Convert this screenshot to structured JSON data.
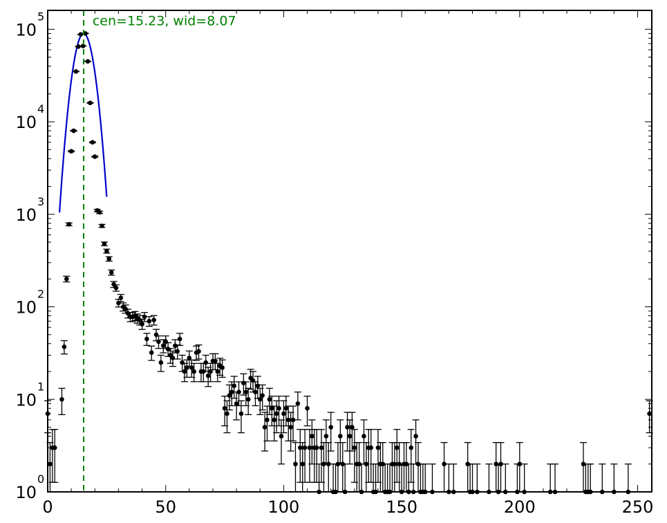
{
  "chart_data": {
    "type": "scatter",
    "title": "",
    "xlabel": "",
    "ylabel": "",
    "xlim": [
      0,
      256
    ],
    "ylim": [
      1,
      160000
    ],
    "yscale": "log",
    "grid": false,
    "x_ticks": [
      {
        "value": 0,
        "label": "0"
      },
      {
        "value": 50,
        "label": "50"
      },
      {
        "value": 100,
        "label": "100"
      },
      {
        "value": 150,
        "label": "150"
      },
      {
        "value": 200,
        "label": "200"
      },
      {
        "value": 250,
        "label": "250"
      }
    ],
    "y_ticks": [
      {
        "value": 1,
        "base": "10",
        "exp": "0"
      },
      {
        "value": 10,
        "base": "10",
        "exp": "1"
      },
      {
        "value": 100,
        "base": "10",
        "exp": "2"
      },
      {
        "value": 1000,
        "base": "10",
        "exp": "3"
      },
      {
        "value": 10000,
        "base": "10",
        "exp": "4"
      },
      {
        "value": 100000,
        "base": "10",
        "exp": "5"
      }
    ],
    "annotation": {
      "text": "cen=15.23, wid=8.07",
      "color": "#008000",
      "x": 19,
      "y": 100000
    },
    "center_line": {
      "x": 15.23,
      "color": "#008000",
      "style": "dashed"
    },
    "fit": {
      "color": "#0000cc",
      "center": 15.23,
      "width": 8.07,
      "amplitude": 90000,
      "x_range": [
        5,
        25
      ]
    },
    "series": [
      {
        "color": "#000000",
        "points": [
          [
            0,
            7
          ],
          [
            1,
            2
          ],
          [
            2,
            3
          ],
          [
            3,
            3
          ],
          [
            6,
            10
          ],
          [
            7,
            37
          ],
          [
            8,
            200
          ],
          [
            9,
            780
          ],
          [
            10,
            4800
          ],
          [
            11,
            8000
          ],
          [
            12,
            35000
          ],
          [
            13,
            65000
          ],
          [
            14,
            88000
          ],
          [
            15,
            66000
          ],
          [
            16,
            90000
          ],
          [
            17,
            45000
          ],
          [
            18,
            16000
          ],
          [
            19,
            6000
          ],
          [
            20,
            4200
          ],
          [
            21,
            1100
          ],
          [
            22,
            1050
          ],
          [
            23,
            750
          ],
          [
            24,
            480
          ],
          [
            25,
            400
          ],
          [
            26,
            330
          ],
          [
            27,
            235
          ],
          [
            28,
            175
          ],
          [
            29,
            160
          ],
          [
            30,
            110
          ],
          [
            31,
            125
          ],
          [
            32,
            100
          ],
          [
            33,
            95
          ],
          [
            34,
            85
          ],
          [
            35,
            78
          ],
          [
            36,
            78
          ],
          [
            37,
            80
          ],
          [
            38,
            75
          ],
          [
            39,
            72
          ],
          [
            40,
            65
          ],
          [
            41,
            78
          ],
          [
            42,
            45
          ],
          [
            43,
            70
          ],
          [
            44,
            32
          ],
          [
            45,
            72
          ],
          [
            46,
            50
          ],
          [
            47,
            42
          ],
          [
            48,
            25
          ],
          [
            49,
            38
          ],
          [
            50,
            42
          ],
          [
            51,
            35
          ],
          [
            52,
            30
          ],
          [
            53,
            28
          ],
          [
            54,
            38
          ],
          [
            55,
            33
          ],
          [
            56,
            45
          ],
          [
            57,
            25
          ],
          [
            58,
            20
          ],
          [
            59,
            22
          ],
          [
            60,
            28
          ],
          [
            61,
            22
          ],
          [
            62,
            20
          ],
          [
            63,
            32
          ],
          [
            64,
            33
          ],
          [
            65,
            20
          ],
          [
            66,
            20
          ],
          [
            67,
            25
          ],
          [
            68,
            18
          ],
          [
            69,
            20
          ],
          [
            70,
            26
          ],
          [
            71,
            26
          ],
          [
            72,
            20
          ],
          [
            73,
            23
          ],
          [
            74,
            22
          ],
          [
            75,
            8
          ],
          [
            76,
            7
          ],
          [
            77,
            11
          ],
          [
            78,
            12
          ],
          [
            79,
            14
          ],
          [
            80,
            9
          ],
          [
            81,
            12
          ],
          [
            82,
            7
          ],
          [
            83,
            15
          ],
          [
            84,
            12
          ],
          [
            85,
            10
          ],
          [
            86,
            17
          ],
          [
            87,
            16
          ],
          [
            88,
            12
          ],
          [
            89,
            14
          ],
          [
            90,
            10
          ],
          [
            91,
            11
          ],
          [
            92,
            5
          ],
          [
            93,
            6
          ],
          [
            94,
            10
          ],
          [
            95,
            8
          ],
          [
            96,
            6
          ],
          [
            97,
            7
          ],
          [
            98,
            8
          ],
          [
            99,
            4
          ],
          [
            100,
            7
          ],
          [
            101,
            8
          ],
          [
            102,
            6
          ],
          [
            103,
            5
          ],
          [
            104,
            6
          ],
          [
            105,
            2
          ],
          [
            106,
            9
          ],
          [
            107,
            3
          ],
          [
            108,
            2
          ],
          [
            109,
            3
          ],
          [
            110,
            8
          ],
          [
            111,
            3
          ],
          [
            112,
            4
          ],
          [
            113,
            3
          ],
          [
            114,
            3
          ],
          [
            115,
            1
          ],
          [
            116,
            3
          ],
          [
            117,
            2
          ],
          [
            118,
            4
          ],
          [
            119,
            2
          ],
          [
            120,
            5
          ],
          [
            121,
            1
          ],
          [
            122,
            1
          ],
          [
            123,
            2
          ],
          [
            124,
            4
          ],
          [
            125,
            2
          ],
          [
            126,
            1
          ],
          [
            127,
            5
          ],
          [
            128,
            4
          ],
          [
            129,
            5
          ],
          [
            130,
            3
          ],
          [
            131,
            2
          ],
          [
            132,
            2
          ],
          [
            133,
            1
          ],
          [
            134,
            4
          ],
          [
            135,
            2
          ],
          [
            136,
            3
          ],
          [
            137,
            3
          ],
          [
            138,
            1
          ],
          [
            139,
            1
          ],
          [
            140,
            3
          ],
          [
            141,
            2
          ],
          [
            142,
            2
          ],
          [
            143,
            1
          ],
          [
            144,
            1
          ],
          [
            145,
            1
          ],
          [
            146,
            2
          ],
          [
            147,
            2
          ],
          [
            148,
            3
          ],
          [
            149,
            2
          ],
          [
            150,
            1
          ],
          [
            151,
            2
          ],
          [
            152,
            2
          ],
          [
            153,
            1
          ],
          [
            154,
            3
          ],
          [
            155,
            1
          ],
          [
            156,
            4
          ],
          [
            157,
            2
          ],
          [
            158,
            1
          ],
          [
            159,
            1
          ],
          [
            160,
            1
          ],
          [
            163,
            1
          ],
          [
            168,
            2
          ],
          [
            170,
            1
          ],
          [
            172,
            1
          ],
          [
            178,
            2
          ],
          [
            179,
            1
          ],
          [
            180,
            1
          ],
          [
            182,
            1
          ],
          [
            187,
            1
          ],
          [
            190,
            2
          ],
          [
            191,
            1
          ],
          [
            192,
            2
          ],
          [
            194,
            1
          ],
          [
            199,
            1
          ],
          [
            200,
            2
          ],
          [
            202,
            1
          ],
          [
            213,
            1
          ],
          [
            215,
            1
          ],
          [
            227,
            2
          ],
          [
            228,
            1
          ],
          [
            229,
            1
          ],
          [
            230,
            1
          ],
          [
            235,
            1
          ],
          [
            240,
            1
          ],
          [
            246,
            1
          ],
          [
            255,
            7
          ]
        ]
      }
    ]
  }
}
